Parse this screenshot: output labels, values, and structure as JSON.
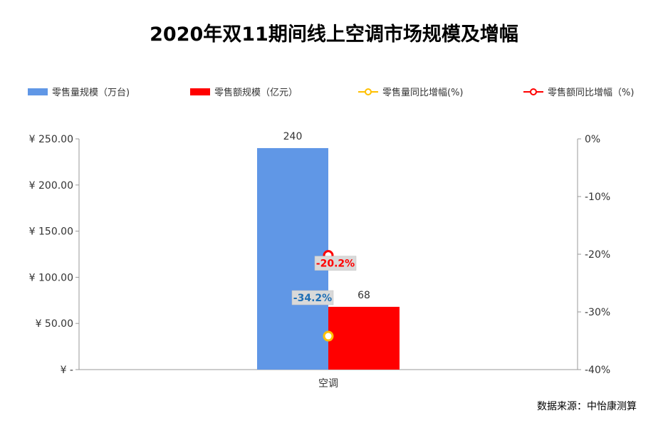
{
  "title": "2020年双11期间线上空调市场规模及增幅",
  "source": "数据来源：中怡康测算",
  "legend": [
    {
      "label": "零售量规模（万台)",
      "color": "#6097e6",
      "kind": "bar"
    },
    {
      "label": "零售额规模（亿元）",
      "color": "#ff0000",
      "kind": "bar"
    },
    {
      "label": "零售量同比增幅(%)",
      "color": "#ffc000",
      "kind": "line"
    },
    {
      "label": "零售额同比增幅（%)",
      "color": "#ff0000",
      "kind": "line"
    }
  ],
  "chart_data": {
    "type": "bar",
    "categories": [
      "空调"
    ],
    "series": [
      {
        "name": "零售量规模（万台)",
        "values": [
          240
        ],
        "axis": "left",
        "color": "#6097e6",
        "data_label": "240"
      },
      {
        "name": "零售额规模（亿元）",
        "values": [
          68
        ],
        "axis": "left",
        "color": "#ff0000",
        "data_label": "68"
      },
      {
        "name": "零售量同比增幅(%)",
        "values": [
          -34.2
        ],
        "axis": "right",
        "color": "#ffc000",
        "type": "line",
        "data_label": "-34.2%"
      },
      {
        "name": "零售额同比增幅（%)",
        "values": [
          -20.2
        ],
        "axis": "right",
        "color": "#ff0000",
        "type": "line",
        "data_label": "-20.2%"
      }
    ],
    "y_left": {
      "ylim": [
        0,
        250
      ],
      "ticks": [
        0,
        50,
        100,
        150,
        200,
        250
      ],
      "tick_labels": [
        "¥ -",
        "¥ 50.00",
        "¥ 100.00",
        "¥ 150.00",
        "¥ 200.00",
        "¥ 250.00"
      ]
    },
    "y_right": {
      "ylim": [
        -40,
        0
      ],
      "ticks": [
        0,
        -10,
        -20,
        -30,
        -40
      ],
      "tick_labels": [
        "0%",
        "-10%",
        "-20%",
        "-30%",
        "-40%"
      ]
    },
    "grid": false,
    "legend_position": "top"
  }
}
